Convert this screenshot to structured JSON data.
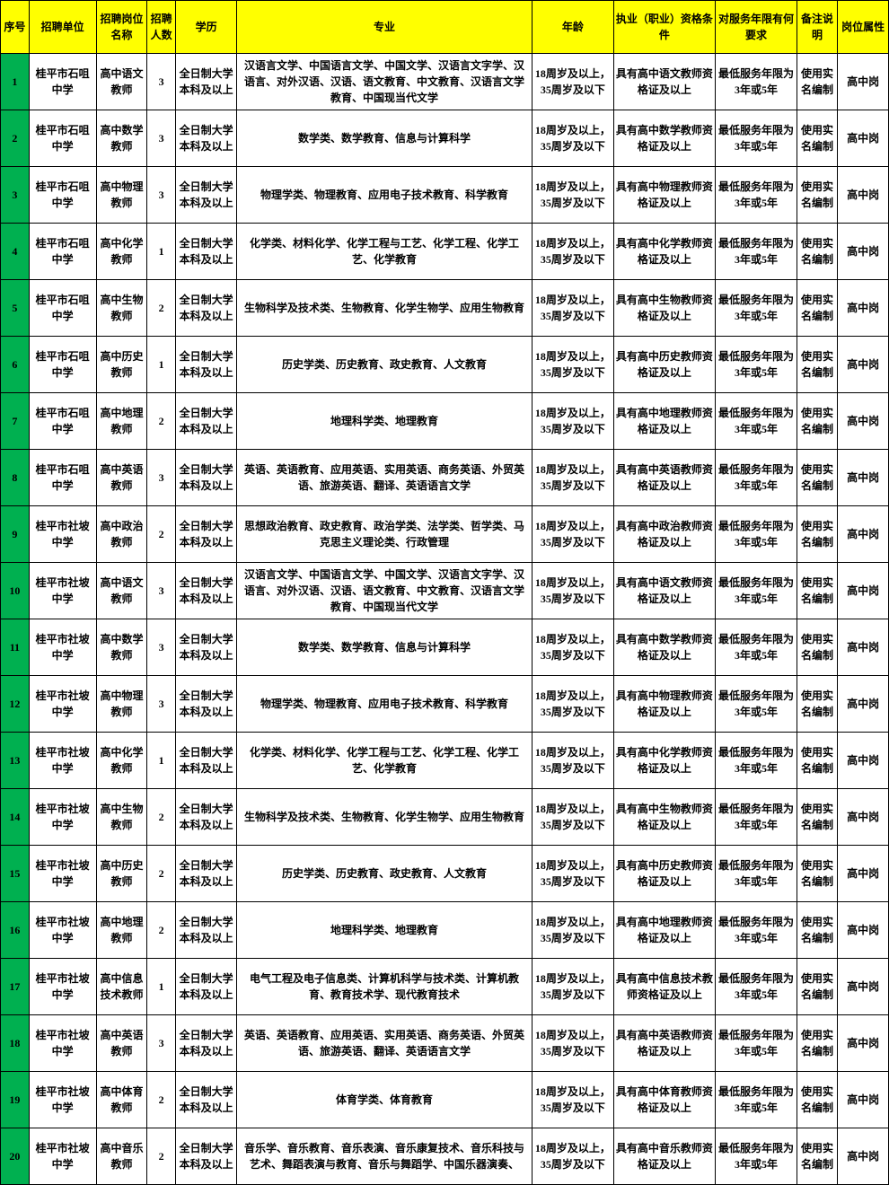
{
  "colors": {
    "header_bg": "#ffff00",
    "seq_bg": "#00b050"
  },
  "columns": [
    "序号",
    "招聘单位",
    "招聘岗位名称",
    "招聘人数",
    "学历",
    "专业",
    "年龄",
    "执业（职业）资格条件",
    "对服务年限有何要求",
    "备注说明",
    "岗位属性"
  ],
  "colkeys": [
    "seq",
    "unit",
    "pos",
    "num",
    "edu",
    "major",
    "age",
    "qual",
    "serv",
    "note",
    "attr"
  ],
  "rows": [
    {
      "seq": "1",
      "unit": "桂平市石咀中学",
      "pos": "高中语文教师",
      "num": "3",
      "edu": "全日制大学本科及以上",
      "major": "汉语言文学、中国语言文学、中国文学、汉语言文字学、汉语言、对外汉语、汉语、语文教育、中文教育、汉语言文学教育、中国现当代文学",
      "age": "18周岁及以上，35周岁及以下",
      "qual": "具有高中语文教师资格证及以上",
      "serv": "最低服务年限为3年或5年",
      "note": "使用实名编制",
      "attr": "高中岗"
    },
    {
      "seq": "2",
      "unit": "桂平市石咀中学",
      "pos": "高中数学教师",
      "num": "3",
      "edu": "全日制大学本科及以上",
      "major": "数学类、数学教育、信息与计算科学",
      "age": "18周岁及以上，35周岁及以下",
      "qual": "具有高中数学教师资格证及以上",
      "serv": "最低服务年限为3年或5年",
      "note": "使用实名编制",
      "attr": "高中岗"
    },
    {
      "seq": "3",
      "unit": "桂平市石咀中学",
      "pos": "高中物理教师",
      "num": "3",
      "edu": "全日制大学本科及以上",
      "major": "物理学类、物理教育、应用电子技术教育、科学教育",
      "age": "18周岁及以上，35周岁及以下",
      "qual": "具有高中物理教师资格证及以上",
      "serv": "最低服务年限为3年或5年",
      "note": "使用实名编制",
      "attr": "高中岗"
    },
    {
      "seq": "4",
      "unit": "桂平市石咀中学",
      "pos": "高中化学教师",
      "num": "1",
      "edu": "全日制大学本科及以上",
      "major": "化学类、材料化学、化学工程与工艺、化学工程、化学工艺、化学教育",
      "age": "18周岁及以上，35周岁及以下",
      "qual": "具有高中化学教师资格证及以上",
      "serv": "最低服务年限为3年或5年",
      "note": "使用实名编制",
      "attr": "高中岗"
    },
    {
      "seq": "5",
      "unit": "桂平市石咀中学",
      "pos": "高中生物教师",
      "num": "2",
      "edu": "全日制大学本科及以上",
      "major": "生物科学及技术类、生物教育、化学生物学、应用生物教育",
      "age": "18周岁及以上，35周岁及以下",
      "qual": "具有高中生物教师资格证及以上",
      "serv": "最低服务年限为3年或5年",
      "note": "使用实名编制",
      "attr": "高中岗"
    },
    {
      "seq": "6",
      "unit": "桂平市石咀中学",
      "pos": "高中历史教师",
      "num": "1",
      "edu": "全日制大学本科及以上",
      "major": "历史学类、历史教育、政史教育、人文教育",
      "age": "18周岁及以上，35周岁及以下",
      "qual": "具有高中历史教师资格证及以上",
      "serv": "最低服务年限为3年或5年",
      "note": "使用实名编制",
      "attr": "高中岗"
    },
    {
      "seq": "7",
      "unit": "桂平市石咀中学",
      "pos": "高中地理教师",
      "num": "2",
      "edu": "全日制大学本科及以上",
      "major": "地理科学类、地理教育",
      "age": "18周岁及以上，35周岁及以下",
      "qual": "具有高中地理教师资格证及以上",
      "serv": "最低服务年限为3年或5年",
      "note": "使用实名编制",
      "attr": "高中岗"
    },
    {
      "seq": "8",
      "unit": "桂平市石咀中学",
      "pos": "高中英语教师",
      "num": "3",
      "edu": "全日制大学本科及以上",
      "major": "英语、英语教育、应用英语、实用英语、商务英语、外贸英语、旅游英语、翻译、英语语言文学",
      "age": "18周岁及以上，35周岁及以下",
      "qual": "具有高中英语教师资格证及以上",
      "serv": "最低服务年限为3年或5年",
      "note": "使用实名编制",
      "attr": "高中岗"
    },
    {
      "seq": "9",
      "unit": "桂平市社坡中学",
      "pos": "高中政治教师",
      "num": "2",
      "edu": "全日制大学本科及以上",
      "major": "思想政治教育、政史教育、政治学类、法学类、哲学类、马克思主义理论类、行政管理",
      "age": "18周岁及以上，35周岁及以下",
      "qual": "具有高中政治教师资格证及以上",
      "serv": "最低服务年限为3年或5年",
      "note": "使用实名编制",
      "attr": "高中岗"
    },
    {
      "seq": "10",
      "unit": "桂平市社坡中学",
      "pos": "高中语文教师",
      "num": "3",
      "edu": "全日制大学本科及以上",
      "major": "汉语言文学、中国语言文学、中国文学、汉语言文字学、汉语言、对外汉语、汉语、语文教育、中文教育、汉语言文学教育、中国现当代文学",
      "age": "18周岁及以上，35周岁及以下",
      "qual": "具有高中语文教师资格证及以上",
      "serv": "最低服务年限为3年或5年",
      "note": "使用实名编制",
      "attr": "高中岗"
    },
    {
      "seq": "11",
      "unit": "桂平市社坡中学",
      "pos": "高中数学教师",
      "num": "3",
      "edu": "全日制大学本科及以上",
      "major": "数学类、数学教育、信息与计算科学",
      "age": "18周岁及以上，35周岁及以下",
      "qual": "具有高中数学教师资格证及以上",
      "serv": "最低服务年限为3年或5年",
      "note": "使用实名编制",
      "attr": "高中岗"
    },
    {
      "seq": "12",
      "unit": "桂平市社坡中学",
      "pos": "高中物理教师",
      "num": "3",
      "edu": "全日制大学本科及以上",
      "major": "物理学类、物理教育、应用电子技术教育、科学教育",
      "age": "18周岁及以上，35周岁及以下",
      "qual": "具有高中物理教师资格证及以上",
      "serv": "最低服务年限为3年或5年",
      "note": "使用实名编制",
      "attr": "高中岗"
    },
    {
      "seq": "13",
      "unit": "桂平市社坡中学",
      "pos": "高中化学教师",
      "num": "1",
      "edu": "全日制大学本科及以上",
      "major": "化学类、材料化学、化学工程与工艺、化学工程、化学工艺、化学教育",
      "age": "18周岁及以上，35周岁及以下",
      "qual": "具有高中化学教师资格证及以上",
      "serv": "最低服务年限为3年或5年",
      "note": "使用实名编制",
      "attr": "高中岗"
    },
    {
      "seq": "14",
      "unit": "桂平市社坡中学",
      "pos": "高中生物教师",
      "num": "2",
      "edu": "全日制大学本科及以上",
      "major": "生物科学及技术类、生物教育、化学生物学、应用生物教育",
      "age": "18周岁及以上，35周岁及以下",
      "qual": "具有高中生物教师资格证及以上",
      "serv": "最低服务年限为3年或5年",
      "note": "使用实名编制",
      "attr": "高中岗"
    },
    {
      "seq": "15",
      "unit": "桂平市社坡中学",
      "pos": "高中历史教师",
      "num": "2",
      "edu": "全日制大学本科及以上",
      "major": "历史学类、历史教育、政史教育、人文教育",
      "age": "18周岁及以上，35周岁及以下",
      "qual": "具有高中历史教师资格证及以上",
      "serv": "最低服务年限为3年或5年",
      "note": "使用实名编制",
      "attr": "高中岗"
    },
    {
      "seq": "16",
      "unit": "桂平市社坡中学",
      "pos": "高中地理教师",
      "num": "2",
      "edu": "全日制大学本科及以上",
      "major": "地理科学类、地理教育",
      "age": "18周岁及以上，35周岁及以下",
      "qual": "具有高中地理教师资格证及以上",
      "serv": "最低服务年限为3年或5年",
      "note": "使用实名编制",
      "attr": "高中岗"
    },
    {
      "seq": "17",
      "unit": "桂平市社坡中学",
      "pos": "高中信息技术教师",
      "num": "1",
      "edu": "全日制大学本科及以上",
      "major": "电气工程及电子信息类、计算机科学与技术类、计算机教育、教育技术学、现代教育技术",
      "age": "18周岁及以上，35周岁及以下",
      "qual": "具有高中信息技术教师资格证及以上",
      "serv": "最低服务年限为3年或5年",
      "note": "使用实名编制",
      "attr": "高中岗"
    },
    {
      "seq": "18",
      "unit": "桂平市社坡中学",
      "pos": "高中英语教师",
      "num": "3",
      "edu": "全日制大学本科及以上",
      "major": "英语、英语教育、应用英语、实用英语、商务英语、外贸英语、旅游英语、翻译、英语语言文学",
      "age": "18周岁及以上，35周岁及以下",
      "qual": "具有高中英语教师资格证及以上",
      "serv": "最低服务年限为3年或5年",
      "note": "使用实名编制",
      "attr": "高中岗"
    },
    {
      "seq": "19",
      "unit": "桂平市社坡中学",
      "pos": "高中体育教师",
      "num": "2",
      "edu": "全日制大学本科及以上",
      "major": "体育学类、体育教育",
      "age": "18周岁及以上，35周岁及以下",
      "qual": "具有高中体育教师资格证及以上",
      "serv": "最低服务年限为3年或5年",
      "note": "使用实名编制",
      "attr": "高中岗"
    },
    {
      "seq": "20",
      "unit": "桂平市社坡中学",
      "pos": "高中音乐教师",
      "num": "2",
      "edu": "全日制大学本科及以上",
      "major": "音乐学、音乐教育、音乐表演、音乐康复技术、音乐科技与艺术、舞蹈表演与教育、音乐与舞蹈学、中国乐器演奏、",
      "age": "18周岁及以上，35周岁及以下",
      "qual": "具有高中音乐教师资格证及以上",
      "serv": "最低服务年限为3年或5年",
      "note": "使用实名编制",
      "attr": "高中岗"
    }
  ]
}
